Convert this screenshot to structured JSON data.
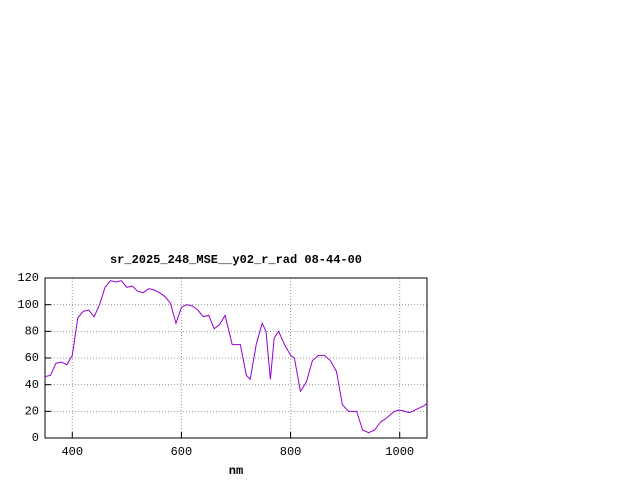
{
  "chart_data": {
    "type": "line",
    "title": "sr_2025_248_MSE__y02_r_rad 08-44-00",
    "x_label": "nm",
    "x": [
      350,
      360,
      370,
      380,
      390,
      400,
      410,
      420,
      430,
      440,
      450,
      460,
      470,
      480,
      490,
      500,
      510,
      520,
      530,
      540,
      550,
      560,
      570,
      580,
      590,
      600,
      610,
      620,
      630,
      640,
      650,
      660,
      670,
      680,
      693,
      708,
      719,
      726,
      737,
      748,
      755,
      763,
      770,
      778,
      789,
      800,
      807,
      818,
      829,
      840,
      851,
      862,
      873,
      884,
      895,
      906,
      921,
      932,
      943,
      954,
      965,
      976,
      990,
      1000,
      1018,
      1033,
      1044,
      1050
    ],
    "series": [
      {
        "color": "#9400d3",
        "values": [
          46,
          47,
          56,
          57,
          55,
          62,
          90,
          95,
          96,
          91,
          100,
          113,
          118,
          117,
          118,
          113,
          114,
          110,
          109,
          112,
          111,
          109,
          106,
          101,
          86,
          98,
          100,
          99,
          96,
          91,
          92,
          82,
          85,
          92,
          70,
          70,
          47,
          44,
          70,
          86,
          80,
          44,
          75,
          80,
          70,
          62,
          60,
          35,
          42,
          58,
          62,
          62,
          58,
          50,
          25,
          20,
          20,
          6,
          4,
          6,
          12,
          15,
          20,
          21,
          19,
          22,
          24,
          26
        ]
      }
    ],
    "xlim": [
      350,
      1050
    ],
    "ylim": [
      0,
      120
    ],
    "xticks": [
      400,
      600,
      800,
      1000
    ],
    "yticks": [
      0,
      20,
      40,
      60,
      80,
      100,
      120
    ],
    "grid": true
  }
}
